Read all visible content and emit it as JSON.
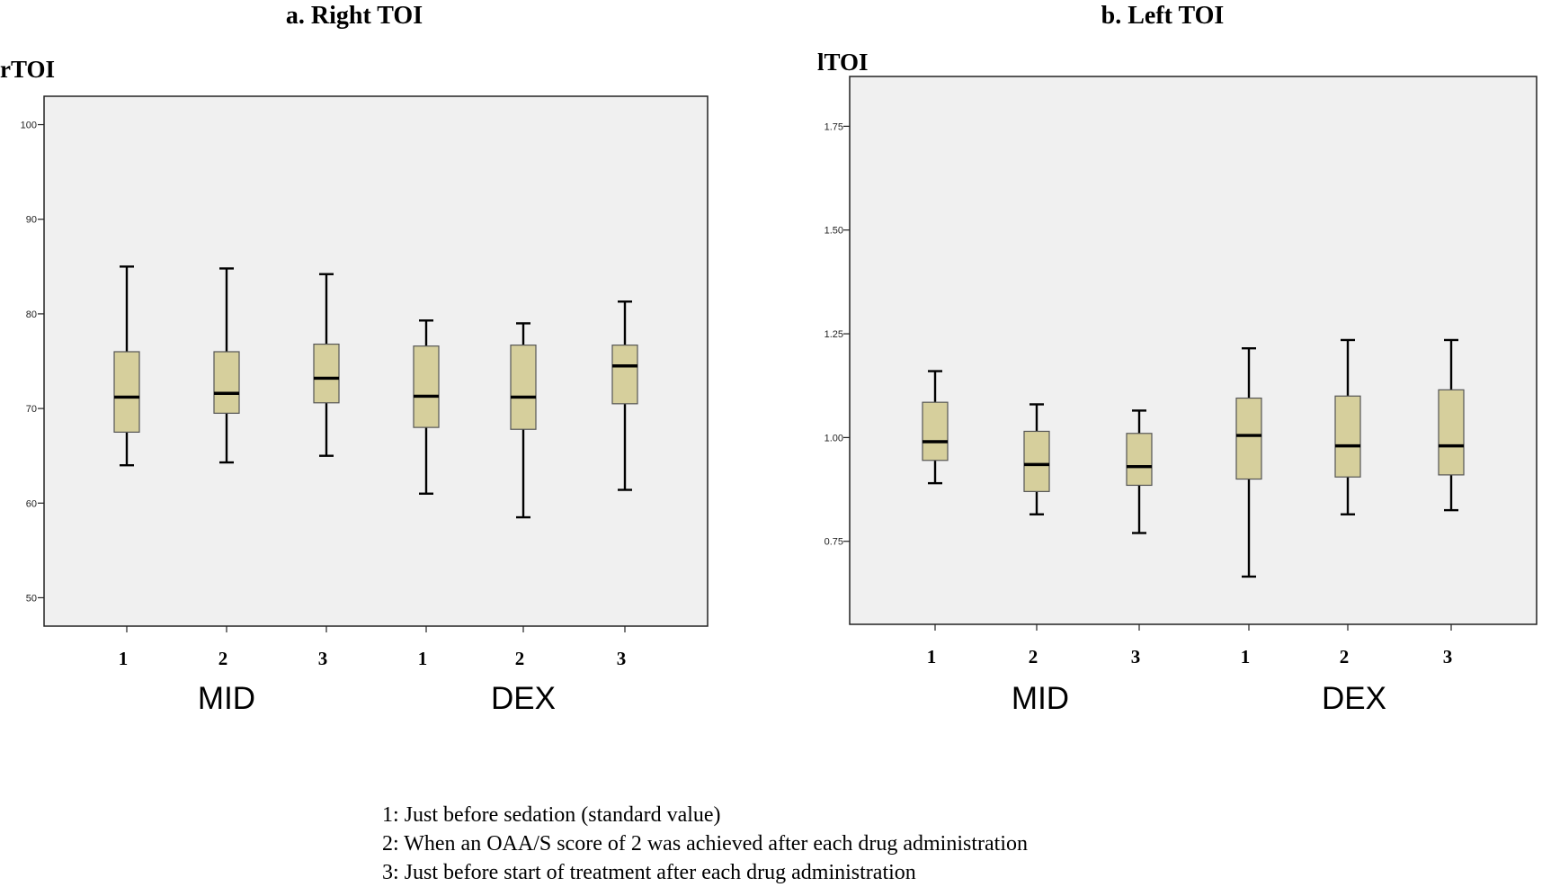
{
  "chart_data": [
    {
      "type": "box",
      "title": "a. Right TOI",
      "ylabel": "rTOI",
      "ylim": [
        47,
        103
      ],
      "yticks": [
        50,
        60,
        70,
        80,
        90,
        100
      ],
      "ytick_labels": [
        "50",
        "60",
        "70",
        "80",
        "90",
        "100"
      ],
      "box_color": "#d6cf9c",
      "categories": [
        "1",
        "2",
        "3",
        "1",
        "2",
        "3"
      ],
      "groups": [
        "MID",
        "DEX"
      ],
      "boxes": [
        {
          "group": "MID",
          "category": "1",
          "min": 64.0,
          "q1": 67.5,
          "median": 71.2,
          "q3": 76.0,
          "max": 85.0
        },
        {
          "group": "MID",
          "category": "2",
          "min": 64.3,
          "q1": 69.5,
          "median": 71.6,
          "q3": 76.0,
          "max": 84.8
        },
        {
          "group": "MID",
          "category": "3",
          "min": 65.0,
          "q1": 70.6,
          "median": 73.2,
          "q3": 76.8,
          "max": 84.2
        },
        {
          "group": "DEX",
          "category": "1",
          "min": 61.0,
          "q1": 68.0,
          "median": 71.3,
          "q3": 76.6,
          "max": 79.3
        },
        {
          "group": "DEX",
          "category": "2",
          "min": 58.5,
          "q1": 67.8,
          "median": 71.2,
          "q3": 76.7,
          "max": 79.0
        },
        {
          "group": "DEX",
          "category": "3",
          "min": 61.4,
          "q1": 70.5,
          "median": 74.5,
          "q3": 76.7,
          "max": 81.3
        }
      ]
    },
    {
      "type": "box",
      "title": "b. Left TOI",
      "ylabel": "lTOI",
      "ylim": [
        0.55,
        1.87
      ],
      "yticks": [
        0.75,
        1.0,
        1.25,
        1.5,
        1.75
      ],
      "ytick_labels": [
        "0.75",
        "1.00",
        "1.25",
        "1.50",
        "1.75"
      ],
      "box_color": "#d6cf9c",
      "categories": [
        "1",
        "2",
        "3",
        "1",
        "2",
        "3"
      ],
      "groups": [
        "MID",
        "DEX"
      ],
      "boxes": [
        {
          "group": "MID",
          "category": "1",
          "min": 0.89,
          "q1": 0.945,
          "median": 0.99,
          "q3": 1.085,
          "max": 1.16
        },
        {
          "group": "MID",
          "category": "2",
          "min": 0.815,
          "q1": 0.87,
          "median": 0.935,
          "q3": 1.015,
          "max": 1.08
        },
        {
          "group": "MID",
          "category": "3",
          "min": 0.77,
          "q1": 0.885,
          "median": 0.93,
          "q3": 1.01,
          "max": 1.065
        },
        {
          "group": "DEX",
          "category": "1",
          "min": 0.665,
          "q1": 0.9,
          "median": 1.005,
          "q3": 1.095,
          "max": 1.215
        },
        {
          "group": "DEX",
          "category": "2",
          "min": 0.815,
          "q1": 0.905,
          "median": 0.98,
          "q3": 1.1,
          "max": 1.235
        },
        {
          "group": "DEX",
          "category": "3",
          "min": 0.825,
          "q1": 0.91,
          "median": 0.98,
          "q3": 1.115,
          "max": 1.235
        }
      ]
    }
  ],
  "footnotes": [
    "1: Just before sedation (standard value)",
    "2: When an OAA/S score of 2 was achieved after each drug administration",
    "3: Just before start of treatment after each drug administration"
  ]
}
